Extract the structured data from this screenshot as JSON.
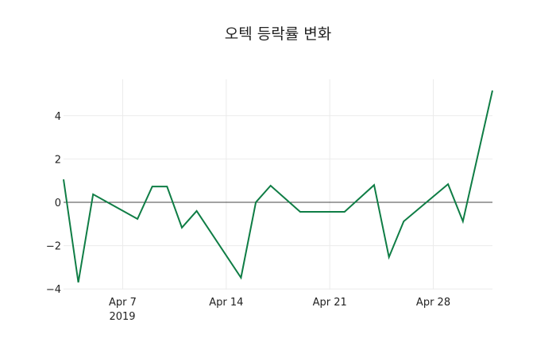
{
  "chart_data": {
    "type": "line",
    "title": "오텍 등락률 변화",
    "xlabel": "",
    "ylabel": "",
    "x": [
      "2019-04-03",
      "2019-04-04",
      "2019-04-05",
      "2019-04-08",
      "2019-04-09",
      "2019-04-10",
      "2019-04-11",
      "2019-04-12",
      "2019-04-15",
      "2019-04-16",
      "2019-04-17",
      "2019-04-19",
      "2019-04-22",
      "2019-04-24",
      "2019-04-25",
      "2019-04-26",
      "2019-04-29",
      "2019-04-30",
      "2019-05-02"
    ],
    "series": [
      {
        "name": "등락률",
        "color": "#0f7d45",
        "values": [
          1.06,
          -3.7,
          0.37,
          -0.77,
          0.73,
          0.73,
          -1.17,
          -0.4,
          -3.48,
          0.0,
          0.77,
          -0.44,
          -0.44,
          0.8,
          -2.53,
          -0.88,
          0.84,
          -0.88,
          5.16
        ]
      }
    ],
    "xlim": [
      "2019-04-03",
      "2019-05-02"
    ],
    "ylim": [
      -4.2,
      5.2
    ],
    "yticks": [
      4,
      2,
      0,
      -2,
      -4
    ],
    "ytick_labels": [
      "4",
      "2",
      "0",
      "−2",
      "−4"
    ],
    "xticks": [
      "2019-04-07",
      "2019-04-14",
      "2019-04-21",
      "2019-04-28"
    ],
    "xtick_labels": [
      "Apr 7",
      "Apr 14",
      "Apr 21",
      "Apr 28"
    ],
    "xtick_sublabel": "2019",
    "grid": true,
    "zeroline": true
  }
}
